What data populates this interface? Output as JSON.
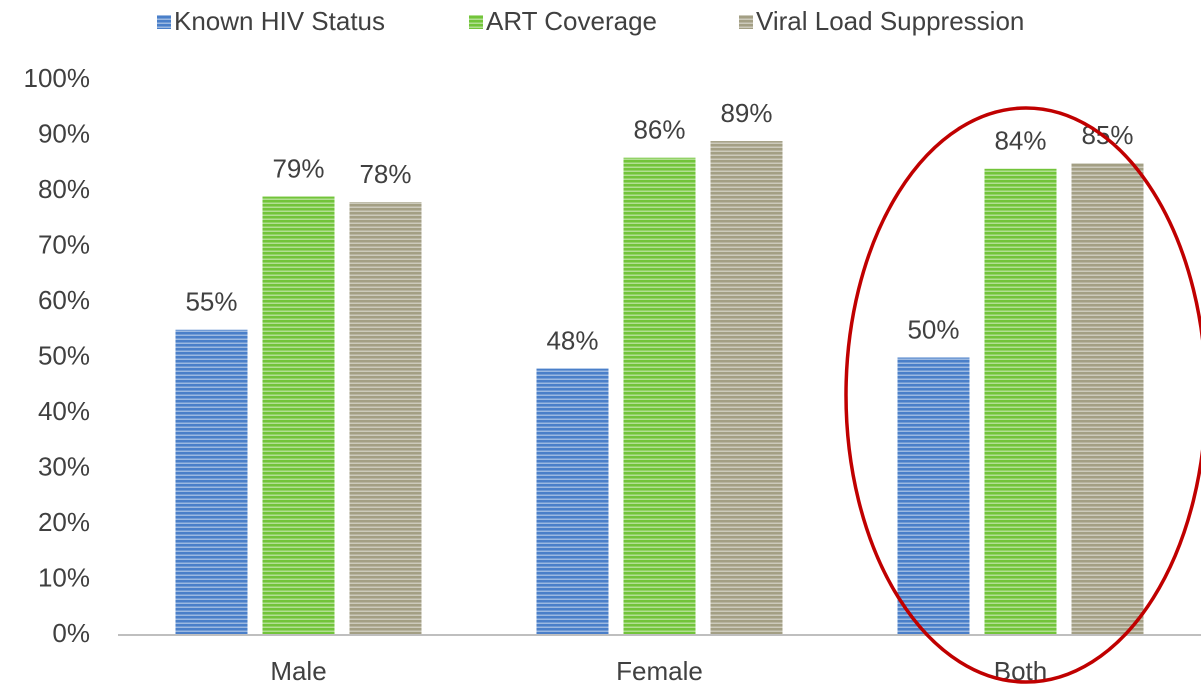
{
  "chart_data": {
    "type": "bar",
    "categories": [
      "Male",
      "Female",
      "Both"
    ],
    "series": [
      {
        "name": "Known HIV Status",
        "color": "#4a7fc9",
        "values": [
          55,
          48,
          50
        ],
        "value_labels": [
          "55%",
          "48%",
          "50%"
        ]
      },
      {
        "name": "ART Coverage",
        "color": "#72c43a",
        "values": [
          79,
          86,
          84
        ],
        "value_labels": [
          "79%",
          "86%",
          "84%"
        ]
      },
      {
        "name": "Viral Load Suppression",
        "color": "#a39f84",
        "values": [
          78,
          89,
          85
        ],
        "value_labels": [
          "78%",
          "89%",
          "85%"
        ]
      }
    ],
    "ylim": [
      0,
      100
    ],
    "yticks": [
      {
        "value": 0,
        "label": "0%"
      },
      {
        "value": 10,
        "label": "10%"
      },
      {
        "value": 20,
        "label": "20%"
      },
      {
        "value": 30,
        "label": "30%"
      },
      {
        "value": 40,
        "label": "40%"
      },
      {
        "value": 50,
        "label": "50%"
      },
      {
        "value": 60,
        "label": "60%"
      },
      {
        "value": 70,
        "label": "70%"
      },
      {
        "value": 80,
        "label": "80%"
      },
      {
        "value": 90,
        "label": "90%"
      },
      {
        "value": 100,
        "label": "100%"
      }
    ],
    "grid": false,
    "legend": "top"
  }
}
